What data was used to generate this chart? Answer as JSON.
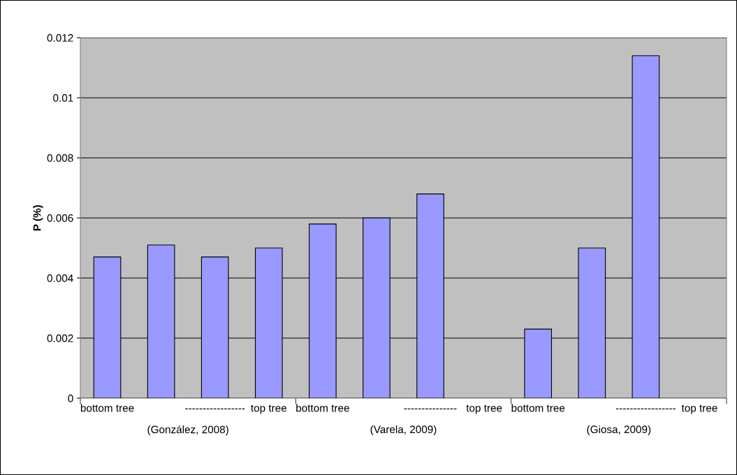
{
  "chart_data": {
    "type": "bar",
    "ylabel": "P (%)",
    "categories": [
      "bottom tree",
      null,
      "-----------------",
      "top tree",
      "bottom tree",
      null,
      "---------------",
      "top tree",
      "bottom tree",
      null,
      "-----------------",
      "top tree"
    ],
    "values": [
      0.0047,
      0.0051,
      0.0047,
      0.005,
      0.0058,
      0.006,
      0.0068,
      null,
      0.0023,
      0.005,
      0.0114,
      null
    ],
    "color": "#9999ff",
    "annotations": [
      "(González, 2008)",
      "(Varela, 2009)",
      "(Giosa, 2009)"
    ],
    "ylim": [
      0,
      0.012
    ],
    "yticks": [
      0,
      0.002,
      0.004,
      0.006,
      0.008,
      0.01,
      0.012
    ],
    "grid": "y",
    "legend": false
  }
}
